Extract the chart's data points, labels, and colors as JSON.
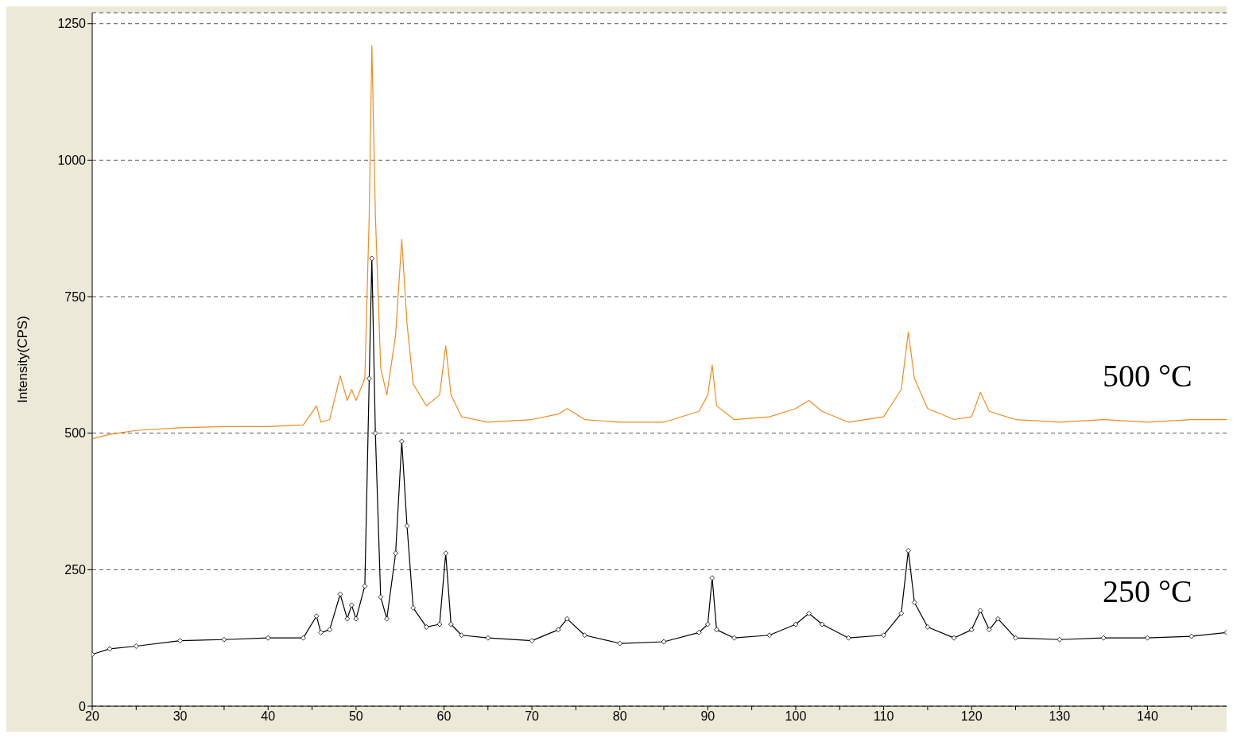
{
  "chart_data": {
    "type": "line",
    "ylabel": "Intensity(CPS)",
    "xlim": [
      20,
      149
    ],
    "ylim": [
      0,
      1270
    ],
    "xticks": [
      20,
      {
        "value": 25,
        "label": null
      },
      30,
      {
        "value": 35,
        "label": null
      },
      40,
      {
        "value": 45,
        "label": null
      },
      50,
      {
        "value": 55,
        "label": null
      },
      60,
      {
        "value": 65,
        "label": null
      },
      70,
      {
        "value": 75,
        "label": null
      },
      80,
      {
        "value": 85,
        "label": null
      },
      90,
      {
        "value": 95,
        "label": null
      },
      100,
      {
        "value": 105,
        "label": null
      },
      110,
      {
        "value": 115,
        "label": null
      },
      120,
      {
        "value": 125,
        "label": null
      },
      130,
      {
        "value": 135,
        "label": null
      },
      140,
      {
        "value": 145,
        "label": null
      }
    ],
    "yticks": [
      0,
      250,
      500,
      750,
      1000,
      1250
    ],
    "grid": "y",
    "line_style": "solid",
    "series": [
      {
        "name": "500 °C",
        "color": "#f28c1e",
        "marker": "none",
        "x": [
          20,
          22,
          25,
          30,
          35,
          40,
          44,
          45.5,
          46,
          47,
          48.2,
          49,
          49.5,
          50,
          51,
          51.5,
          51.8,
          52.2,
          52.8,
          53.5,
          54.5,
          55.2,
          55.8,
          56.5,
          58,
          59.5,
          60.2,
          60.8,
          62,
          65,
          70,
          73,
          74,
          76,
          80,
          85,
          89,
          90,
          90.5,
          91,
          93,
          97,
          100,
          101.5,
          103,
          106,
          110,
          112,
          112.8,
          113.5,
          115,
          118,
          120,
          121,
          122,
          125,
          130,
          135,
          140,
          145,
          149
        ],
        "values": [
          490,
          498,
          505,
          510,
          512,
          512,
          515,
          550,
          520,
          525,
          605,
          560,
          580,
          560,
          600,
          900,
          1210,
          900,
          620,
          570,
          680,
          855,
          700,
          590,
          550,
          570,
          660,
          570,
          530,
          520,
          525,
          535,
          545,
          525,
          520,
          520,
          540,
          570,
          625,
          550,
          525,
          530,
          545,
          560,
          540,
          520,
          530,
          580,
          685,
          600,
          545,
          525,
          530,
          575,
          540,
          525,
          520,
          525,
          520,
          525,
          525
        ]
      },
      {
        "name": "250 °C",
        "color": "#000000",
        "marker": "diamond",
        "x": [
          20,
          22,
          25,
          30,
          35,
          40,
          44,
          45.5,
          46,
          47,
          48.2,
          49,
          49.5,
          50,
          51,
          51.5,
          51.8,
          52.2,
          52.8,
          53.5,
          54.5,
          55.2,
          55.8,
          56.5,
          58,
          59.5,
          60.2,
          60.8,
          62,
          65,
          70,
          73,
          74,
          76,
          80,
          85,
          89,
          90,
          90.5,
          91,
          93,
          97,
          100,
          101.5,
          103,
          106,
          110,
          112,
          112.8,
          113.5,
          115,
          118,
          120,
          121,
          122,
          123,
          125,
          130,
          135,
          140,
          145,
          149
        ],
        "values": [
          95,
          105,
          110,
          120,
          122,
          125,
          125,
          165,
          135,
          140,
          205,
          160,
          185,
          160,
          220,
          600,
          820,
          500,
          200,
          160,
          280,
          485,
          330,
          180,
          145,
          150,
          280,
          150,
          130,
          125,
          120,
          140,
          160,
          130,
          115,
          118,
          135,
          150,
          235,
          140,
          125,
          130,
          150,
          170,
          150,
          125,
          130,
          170,
          285,
          190,
          145,
          125,
          140,
          175,
          140,
          160,
          125,
          122,
          125,
          125,
          128,
          135
        ]
      }
    ]
  }
}
